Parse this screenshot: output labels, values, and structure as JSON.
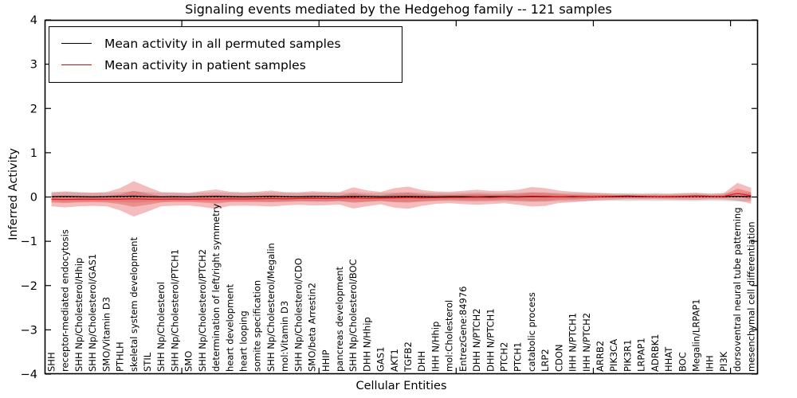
{
  "title": "Signaling events mediated by the Hedgehog family -- 121 samples",
  "axes": {
    "ylabel": "Inferred Activity",
    "xlabel": "Cellular Entities",
    "yticks": [
      4,
      3,
      2,
      1,
      0,
      -1,
      -2,
      -3,
      -4
    ],
    "ylim": [
      -4,
      4
    ]
  },
  "legend": {
    "items": [
      {
        "label": "Mean activity in all permuted samples",
        "color": "#000000"
      },
      {
        "label": "Mean activity in patient samples",
        "color": "#ff0000"
      }
    ]
  },
  "colors": {
    "permuted_line": "#000000",
    "patient_line": "#ee1111",
    "patient_band": "#dd3333",
    "permuted_band": "#000000",
    "zero_line": "#000000",
    "spine": "#000000"
  },
  "chart_data": {
    "type": "line",
    "title": "Signaling events mediated by the Hedgehog family -- 121 samples",
    "xlabel": "Cellular Entities",
    "ylabel": "Inferred Activity",
    "ylim": [
      -4,
      4
    ],
    "grid": false,
    "legend_position": "upper left",
    "categories": [
      "SHH",
      "receptor-mediated endocytosis",
      "SHH Np/Cholesterol/Hhip",
      "SHH Np/Cholesterol/GAS1",
      "SMO/Vitamin D3",
      "PTHLH",
      "skeletal system development",
      "STIL",
      "SHH Np/Cholesterol",
      "SHH Np/Cholesterol/PTCH1",
      "SMO",
      "SHH Np/Cholesterol/PTCH2",
      "determination of left/right symmetry",
      "heart development",
      "heart looping",
      "somite specification",
      "SHH Np/Cholesterol/Megalin",
      "mol:Vitamin D3",
      "SHH Np/Cholesterol/CDO",
      "SMO/beta Arrestin2",
      "HHIP",
      "pancreas development",
      "SHH Np/Cholesterol/BOC",
      "DHH N/Hhip",
      "GAS1",
      "AKT1",
      "TGFB2",
      "DHH",
      "IHH N/Hhip",
      "mol:Cholesterol",
      "EntrezGene:84976",
      "DHH N/PTCH2",
      "DHH N/PTCH1",
      "PTCH2",
      "PTCH1",
      "catabolic process",
      "LRP2",
      "CDON",
      "IHH N/PTCH1",
      "IHH N/PTCH2",
      "ARRB2",
      "PIK3CA",
      "PIK3R1",
      "LRPAP1",
      "ADRBK1",
      "HHAT",
      "BOC",
      "Megalin/LRPAP1",
      "IHH",
      "PI3K",
      "dorsoventral neural tube patterning",
      "mesenchymal cell differentiation"
    ],
    "series": [
      {
        "name": "Mean activity in all permuted samples",
        "values": [
          0.01,
          0.015,
          0.01,
          0.005,
          0.01,
          0.015,
          0.02,
          0.01,
          0.005,
          0.01,
          0.005,
          0.01,
          0.015,
          0.01,
          0.005,
          0.01,
          0.015,
          0.01,
          0.005,
          0.01,
          0.01,
          0.005,
          0.015,
          0.01,
          0.005,
          0.01,
          0.015,
          0.01,
          0.005,
          0.01,
          0.01,
          0.005,
          0.01,
          0.01,
          0.005,
          0.015,
          0.01,
          0.005,
          0.01,
          0.005,
          0.01,
          0.015,
          0.02,
          0.015,
          0.01,
          0.01,
          0.015,
          0.02,
          0.015,
          0.01,
          0.015,
          0.01
        ]
      },
      {
        "name": "Mean activity in patient samples",
        "values": [
          -0.05,
          -0.055,
          -0.05,
          -0.05,
          -0.05,
          -0.05,
          -0.04,
          -0.05,
          -0.05,
          -0.045,
          -0.05,
          -0.045,
          -0.05,
          -0.04,
          -0.045,
          -0.04,
          -0.035,
          -0.04,
          -0.035,
          -0.03,
          -0.035,
          -0.03,
          -0.02,
          -0.03,
          -0.025,
          -0.02,
          -0.015,
          -0.02,
          -0.015,
          -0.01,
          -0.01,
          -0.005,
          -0.01,
          0.0,
          -0.005,
          0.005,
          0.0,
          0.005,
          0.0,
          0.005,
          0.01,
          0.005,
          0.01,
          0.005,
          0.01,
          0.005,
          0.01,
          0.015,
          0.01,
          0.015,
          0.08,
          0.03
        ]
      }
    ],
    "bands": [
      {
        "name": "permuted samples spread",
        "style": "gray",
        "half_width": [
          0.1,
          0.11,
          0.1,
          0.095,
          0.1,
          0.11,
          0.13,
          0.11,
          0.1,
          0.095,
          0.09,
          0.1,
          0.105,
          0.1,
          0.095,
          0.1,
          0.105,
          0.1,
          0.095,
          0.1,
          0.1,
          0.095,
          0.11,
          0.1,
          0.095,
          0.105,
          0.11,
          0.1,
          0.095,
          0.09,
          0.1,
          0.105,
          0.1,
          0.095,
          0.1,
          0.11,
          0.105,
          0.095,
          0.09,
          0.09,
          0.09,
          0.085,
          0.09,
          0.085,
          0.09,
          0.085,
          0.09,
          0.09,
          0.085,
          0.09,
          0.1,
          0.095
        ]
      },
      {
        "name": "patient samples spread",
        "style": "red",
        "upper": [
          0.11,
          0.125,
          0.11,
          0.1,
          0.11,
          0.2,
          0.36,
          0.23,
          0.11,
          0.105,
          0.09,
          0.135,
          0.17,
          0.12,
          0.105,
          0.12,
          0.145,
          0.11,
          0.105,
          0.13,
          0.115,
          0.11,
          0.22,
          0.15,
          0.115,
          0.2,
          0.235,
          0.16,
          0.125,
          0.12,
          0.14,
          0.165,
          0.14,
          0.14,
          0.165,
          0.225,
          0.2,
          0.145,
          0.12,
          0.105,
          0.09,
          0.075,
          0.07,
          0.065,
          0.07,
          0.065,
          0.08,
          0.095,
          0.07,
          0.085,
          0.32,
          0.21
        ],
        "lower": [
          -0.21,
          -0.235,
          -0.21,
          -0.2,
          -0.21,
          -0.3,
          -0.44,
          -0.33,
          -0.21,
          -0.195,
          -0.19,
          -0.225,
          -0.27,
          -0.2,
          -0.195,
          -0.2,
          -0.215,
          -0.19,
          -0.175,
          -0.19,
          -0.185,
          -0.17,
          -0.26,
          -0.21,
          -0.165,
          -0.24,
          -0.265,
          -0.2,
          -0.155,
          -0.14,
          -0.16,
          -0.175,
          -0.16,
          -0.14,
          -0.175,
          -0.215,
          -0.2,
          -0.135,
          -0.12,
          -0.095,
          -0.07,
          -0.06,
          -0.05,
          -0.055,
          -0.05,
          -0.055,
          -0.06,
          -0.065,
          -0.05,
          -0.055,
          -0.08,
          -0.15
        ]
      }
    ],
    "zero_reference_line": 0
  }
}
